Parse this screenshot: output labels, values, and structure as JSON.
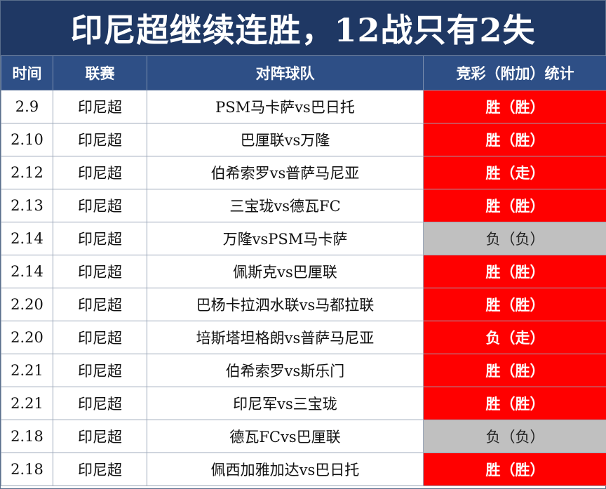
{
  "title": "印尼超继续连胜，12战只有2失",
  "colors": {
    "title_bg": "#1f3864",
    "header_bg": "#2e4f86",
    "win_bg": "#ff0000",
    "loss_bg": "#c0c0c0"
  },
  "table": {
    "headers": [
      "时间",
      "联赛",
      "对阵球队",
      "竞彩（附加）统计"
    ],
    "rows": [
      {
        "date": "2.9",
        "league": "印尼超",
        "match": "PSM马卡萨vs巴日托",
        "result": "胜（胜）",
        "status": "win"
      },
      {
        "date": "2.10",
        "league": "印尼超",
        "match": "巴厘联vs万隆",
        "result": "胜（胜）",
        "status": "win"
      },
      {
        "date": "2.12",
        "league": "印尼超",
        "match": "伯希索罗vs普萨马尼亚",
        "result": "胜（走）",
        "status": "win"
      },
      {
        "date": "2.13",
        "league": "印尼超",
        "match": "三宝珑vs德瓦FC",
        "result": "胜（胜）",
        "status": "win"
      },
      {
        "date": "2.14",
        "league": "印尼超",
        "match": "万隆vsPSM马卡萨",
        "result": "负（负）",
        "status": "loss"
      },
      {
        "date": "2.14",
        "league": "印尼超",
        "match": "佩斯克vs巴厘联",
        "result": "胜（胜）",
        "status": "win"
      },
      {
        "date": "2.20",
        "league": "印尼超",
        "match": "巴杨卡拉泗水联vs马都拉联",
        "result": "胜（胜）",
        "status": "win"
      },
      {
        "date": "2.20",
        "league": "印尼超",
        "match": "培斯塔坦格朗vs普萨马尼亚",
        "result": "负（走）",
        "status": "win"
      },
      {
        "date": "2.21",
        "league": "印尼超",
        "match": "伯希索罗vs斯乐门",
        "result": "胜（胜）",
        "status": "win"
      },
      {
        "date": "2.21",
        "league": "印尼超",
        "match": "印尼军vs三宝珑",
        "result": "胜（胜）",
        "status": "win"
      },
      {
        "date": "2.18",
        "league": "印尼超",
        "match": "德瓦FCvs巴厘联",
        "result": "负（负）",
        "status": "loss"
      },
      {
        "date": "2.18",
        "league": "印尼超",
        "match": "佩西加雅加达vs巴日托",
        "result": "胜（胜）",
        "status": "win"
      }
    ]
  }
}
